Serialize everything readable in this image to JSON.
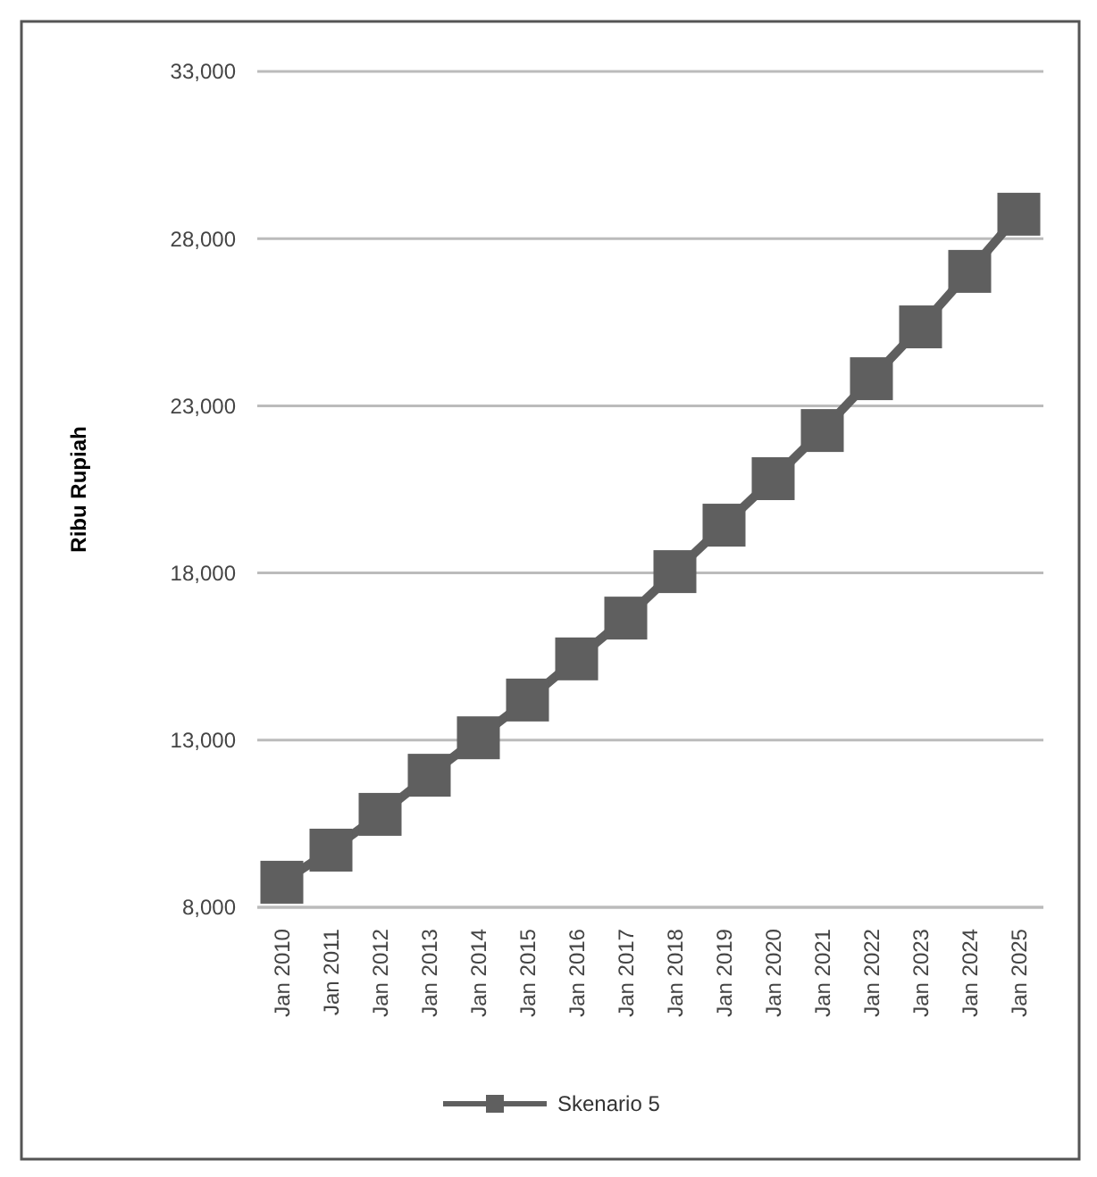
{
  "chart_data": {
    "type": "line",
    "ylabel": "Ribu Rupiah",
    "categories": [
      "Jan 2010",
      "Jan 2011",
      "Jan 2012",
      "Jan 2013",
      "Jan 2014",
      "Jan 2015",
      "Jan 2016",
      "Jan 2017",
      "Jan 2018",
      "Jan 2019",
      "Jan 2020",
      "Jan 2021",
      "Jan 2022",
      "Jan 2023",
      "Jan 2024",
      "Jan 2025"
    ],
    "series": [
      {
        "name": "Skenario 5",
        "color": "#5f5f5f",
        "values": [
          8750,
          9710,
          10780,
          11950,
          13070,
          14200,
          15430,
          16650,
          18040,
          19430,
          20820,
          22260,
          23810,
          25360,
          27020,
          28730
        ]
      }
    ],
    "ylim": [
      8000,
      33000
    ],
    "yticks": [
      {
        "value": 8000,
        "label": "8,000"
      },
      {
        "value": 13000,
        "label": "13,000"
      },
      {
        "value": 18000,
        "label": "18,000"
      },
      {
        "value": 23000,
        "label": "23,000"
      },
      {
        "value": 28000,
        "label": "28,000"
      },
      {
        "value": 33000,
        "label": "33,000"
      }
    ],
    "grid": "y",
    "legend": "bottom",
    "marker": "square",
    "line_style": "solid"
  }
}
